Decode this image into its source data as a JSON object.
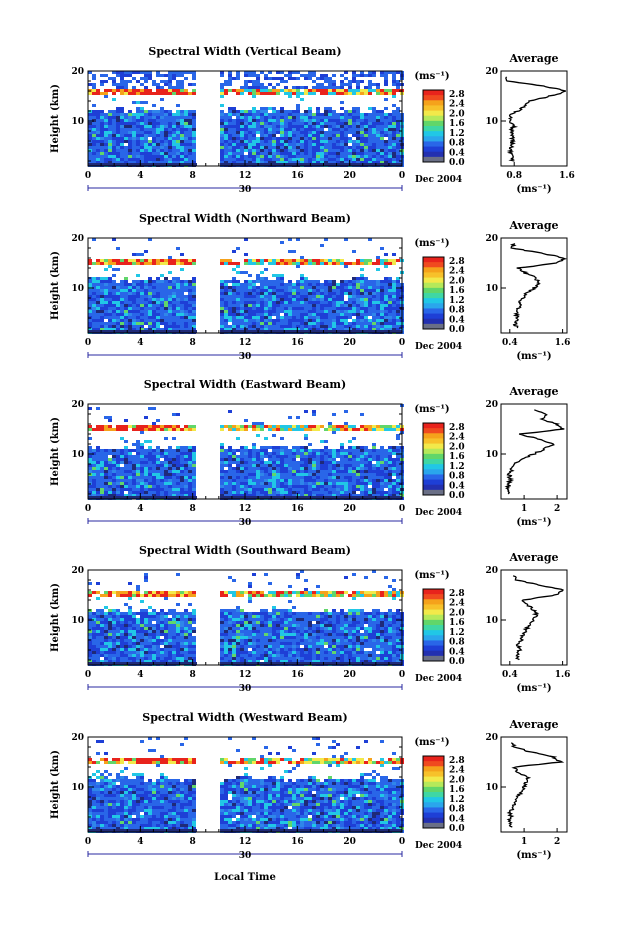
{
  "figure": {
    "xlabel": "Local Time",
    "date_label": "Dec 2004",
    "day_label": "30",
    "unit_label": "(ms⁻¹)",
    "colorbar_ticks": [
      "2.8",
      "2.4",
      "2.0",
      "1.6",
      "1.2",
      "0.8",
      "0.4",
      "0.0"
    ],
    "x_ticks": [
      "0",
      "4",
      "8",
      "12",
      "16",
      "20",
      "0"
    ],
    "y_label": "Height (km)",
    "y_ticks": [
      "20",
      "10"
    ],
    "colors": {
      "high": "#e8231c",
      "orange": "#f5a21b",
      "yellow": "#f2e94a",
      "green": "#61d66a",
      "cyan": "#21c7e6",
      "blue": "#2966e8",
      "deep_blue": "#1e3fd6",
      "navy": "#1f2a78",
      "gray": "#6a6f86"
    }
  },
  "chart_data": [
    {
      "type": "heatmap",
      "title": "Spectral Width (Vertical Beam)",
      "x": {
        "label": "Local Time",
        "ticks": [
          "0",
          "4",
          "8",
          "12",
          "16",
          "20",
          "0"
        ],
        "range_hours": [
          0,
          24
        ]
      },
      "y": {
        "label": "Height (km)",
        "ticks": [
          10,
          20
        ],
        "range_km": [
          1,
          20
        ]
      },
      "data_gap_hours": [
        8.7,
        10.3
      ],
      "colorbar": {
        "unit": "(ms⁻¹)",
        "ticks": [
          0.0,
          0.4,
          0.8,
          1.2,
          1.6,
          2.0,
          2.4,
          2.8
        ]
      },
      "features": {
        "tropopause_band_km": [
          15.4,
          16.2
        ],
        "echo_top_km": 12.5
      },
      "average_profile": {
        "title": "Average",
        "xlabel": "(ms⁻¹)",
        "x_ticks": [
          "0.8",
          "1.6"
        ],
        "x_range": [
          0.6,
          1.6
        ],
        "height_km": [
          2,
          3,
          4,
          5,
          6,
          7,
          8,
          9,
          10,
          11,
          12,
          13,
          14,
          15,
          16,
          17,
          18,
          19
        ],
        "value": [
          0.78,
          0.76,
          0.74,
          0.76,
          0.77,
          0.79,
          0.75,
          0.8,
          0.74,
          0.73,
          0.85,
          0.95,
          1.05,
          1.35,
          1.6,
          1.25,
          0.7,
          0.65
        ]
      }
    },
    {
      "type": "heatmap",
      "title": "Spectral Width (Northward Beam)",
      "x": {
        "label": "Local Time",
        "ticks": [
          "0",
          "4",
          "8",
          "12",
          "16",
          "20",
          "0"
        ],
        "range_hours": [
          0,
          24
        ]
      },
      "y": {
        "label": "Height (km)",
        "ticks": [
          10,
          20
        ],
        "range_km": [
          1,
          20
        ]
      },
      "data_gap_hours": [
        8.7,
        10.3
      ],
      "colorbar": {
        "unit": "(ms⁻¹)",
        "ticks": [
          0.0,
          0.4,
          0.8,
          1.2,
          1.6,
          2.0,
          2.4,
          2.8
        ]
      },
      "features": {
        "tropopause_band_km": [
          15.0,
          15.9
        ],
        "echo_top_km": 12.0
      },
      "average_profile": {
        "title": "Average",
        "xlabel": "(ms⁻¹)",
        "x_ticks": [
          "0.4",
          "1.6"
        ],
        "x_range": [
          0.2,
          1.7
        ],
        "height_km": [
          2,
          3,
          4,
          5,
          6,
          7,
          8,
          9,
          10,
          11,
          12,
          13,
          14,
          15,
          16,
          17,
          18,
          19
        ],
        "value": [
          0.55,
          0.52,
          0.58,
          0.54,
          0.6,
          0.62,
          0.68,
          0.8,
          0.95,
          1.05,
          1.0,
          0.75,
          0.6,
          1.5,
          1.65,
          1.1,
          0.45,
          0.5
        ]
      }
    },
    {
      "type": "heatmap",
      "title": "Spectral Width (Eastward Beam)",
      "x": {
        "label": "Local Time",
        "ticks": [
          "0",
          "4",
          "8",
          "12",
          "16",
          "20",
          "0"
        ],
        "range_hours": [
          0,
          24
        ]
      },
      "y": {
        "label": "Height (km)",
        "ticks": [
          10,
          20
        ],
        "range_km": [
          1,
          20
        ]
      },
      "data_gap_hours": [
        8.7,
        10.3
      ],
      "colorbar": {
        "unit": "(ms⁻¹)",
        "ticks": [
          0.0,
          0.4,
          0.8,
          1.2,
          1.6,
          2.0,
          2.4,
          2.8
        ]
      },
      "features": {
        "tropopause_band_km": [
          15.1,
          16.0
        ],
        "echo_top_km": 11.6
      },
      "average_profile": {
        "title": "Average",
        "xlabel": "(ms⁻¹)",
        "x_ticks": [
          "1",
          "2"
        ],
        "x_range": [
          0.3,
          2.3
        ],
        "height_km": [
          2,
          3,
          4,
          5,
          6,
          7,
          8,
          9,
          10,
          11,
          12,
          13,
          14,
          15,
          16,
          17,
          18,
          19
        ],
        "value": [
          0.55,
          0.52,
          0.54,
          0.58,
          0.55,
          0.62,
          0.7,
          0.9,
          1.3,
          1.6,
          1.9,
          1.4,
          0.9,
          2.2,
          2.0,
          1.5,
          1.7,
          1.2
        ]
      }
    },
    {
      "type": "heatmap",
      "title": "Spectral Width (Southward Beam)",
      "x": {
        "label": "Local Time",
        "ticks": [
          "0",
          "4",
          "8",
          "12",
          "16",
          "20",
          "0"
        ],
        "range_hours": [
          0,
          24
        ]
      },
      "y": {
        "label": "Height (km)",
        "ticks": [
          10,
          20
        ],
        "range_km": [
          1,
          20
        ]
      },
      "data_gap_hours": [
        8.7,
        10.3
      ],
      "colorbar": {
        "unit": "(ms⁻¹)",
        "ticks": [
          0.0,
          0.4,
          0.8,
          1.2,
          1.6,
          2.0,
          2.4,
          2.8
        ]
      },
      "features": {
        "tropopause_band_km": [
          15.0,
          15.8
        ],
        "echo_top_km": 12.2
      },
      "average_profile": {
        "title": "Average",
        "xlabel": "(ms⁻¹)",
        "x_ticks": [
          "0.4",
          "1.6"
        ],
        "x_range": [
          0.2,
          1.7
        ],
        "height_km": [
          2,
          3,
          4,
          5,
          6,
          7,
          8,
          9,
          10,
          11,
          12,
          13,
          14,
          15,
          16,
          17,
          18,
          19
        ],
        "value": [
          0.6,
          0.56,
          0.62,
          0.58,
          0.66,
          0.7,
          0.75,
          0.85,
          0.95,
          1.0,
          0.95,
          0.8,
          0.7,
          1.45,
          1.65,
          1.05,
          0.55,
          0.5
        ]
      }
    },
    {
      "type": "heatmap",
      "title": "Spectral Width (Westward Beam)",
      "x": {
        "label": "Local Time",
        "ticks": [
          "0",
          "4",
          "8",
          "12",
          "16",
          "20",
          "0"
        ],
        "range_hours": [
          0,
          24
        ]
      },
      "y": {
        "label": "Height (km)",
        "ticks": [
          10,
          20
        ],
        "range_km": [
          1,
          20
        ]
      },
      "data_gap_hours": [
        8.7,
        10.3
      ],
      "colorbar": {
        "unit": "(ms⁻¹)",
        "ticks": [
          0.0,
          0.4,
          0.8,
          1.2,
          1.6,
          2.0,
          2.4,
          2.8
        ]
      },
      "features": {
        "tropopause_band_km": [
          14.8,
          15.7
        ],
        "echo_top_km": 12.0
      },
      "average_profile": {
        "title": "Average",
        "xlabel": "(ms⁻¹)",
        "x_ticks": [
          "1",
          "2"
        ],
        "x_range": [
          0.3,
          2.3
        ],
        "height_km": [
          2,
          3,
          4,
          5,
          6,
          7,
          8,
          9,
          10,
          11,
          12,
          13,
          14,
          15,
          16,
          17,
          18,
          19
        ],
        "value": [
          0.62,
          0.55,
          0.6,
          0.58,
          0.66,
          0.72,
          0.8,
          0.9,
          1.0,
          1.05,
          1.1,
          0.8,
          0.7,
          2.1,
          1.9,
          1.2,
          0.7,
          0.6
        ]
      }
    }
  ]
}
